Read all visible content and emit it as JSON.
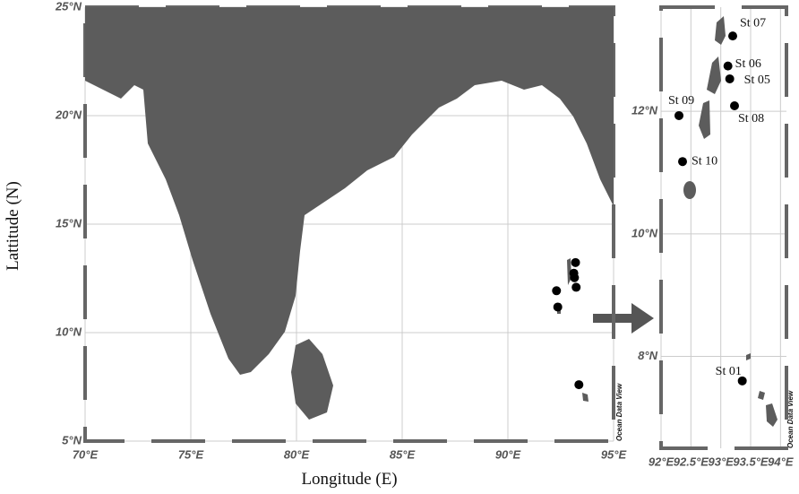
{
  "x_axis_title": "Longitude (E)",
  "y_axis_title": "Lattitude (N)",
  "watermark": "Ocean Data View",
  "main_map": {
    "xlim": [
      70,
      95
    ],
    "ylim": [
      5,
      25
    ],
    "xticks": [
      {
        "value": 70,
        "label": "70°E"
      },
      {
        "value": 75,
        "label": "75°E"
      },
      {
        "value": 80,
        "label": "80°E"
      },
      {
        "value": 85,
        "label": "85°E"
      },
      {
        "value": 90,
        "label": "90°E"
      },
      {
        "value": 95,
        "label": "95°E"
      }
    ],
    "yticks": [
      {
        "value": 5,
        "label": "5°N"
      },
      {
        "value": 10,
        "label": "10°N"
      },
      {
        "value": 15,
        "label": "15°N"
      },
      {
        "value": 20,
        "label": "20°N"
      },
      {
        "value": 25,
        "label": "25°N"
      }
    ]
  },
  "inset_map": {
    "xlim": [
      92,
      94.1
    ],
    "ylim": [
      6.5,
      13.7
    ],
    "xticks": [
      {
        "value": 92,
        "label": "92°E"
      },
      {
        "value": 92.5,
        "label": "92.5°E"
      },
      {
        "value": 93,
        "label": "93°E"
      },
      {
        "value": 93.5,
        "label": "93.5°E"
      },
      {
        "value": 94,
        "label": "94°E"
      }
    ],
    "yticks": [
      {
        "value": 8,
        "label": "8°N"
      },
      {
        "value": 10,
        "label": "10°N"
      },
      {
        "value": 12,
        "label": "12°N"
      }
    ]
  },
  "stations": [
    {
      "name": "St 07",
      "lon": 93.2,
      "lat": 13.23
    },
    {
      "name": "St 06",
      "lon": 93.12,
      "lat": 12.74
    },
    {
      "name": "St 05",
      "lon": 93.15,
      "lat": 12.53
    },
    {
      "name": "St 08",
      "lon": 93.23,
      "lat": 12.09
    },
    {
      "name": "St 09",
      "lon": 92.3,
      "lat": 11.93
    },
    {
      "name": "St 10",
      "lon": 92.36,
      "lat": 11.18
    },
    {
      "name": "St 01",
      "lon": 93.36,
      "lat": 7.6
    }
  ]
}
